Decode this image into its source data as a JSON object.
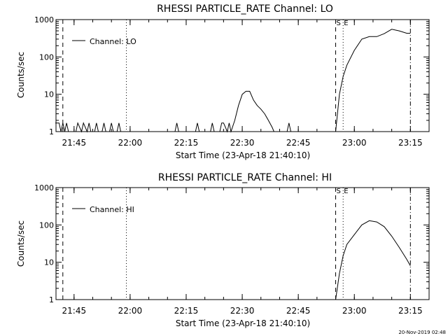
{
  "footer_timestamp": "20-Nov-2019 02:48",
  "chart_data": [
    {
      "type": "line",
      "title": "RHESSI PARTICLE_RATE Channel: LO",
      "xlabel": "Start Time (23-Apr-18 21:40:10)",
      "ylabel": "Counts/sec",
      "yscale": "log",
      "ylim": [
        1,
        1000
      ],
      "y_ticks": [
        "1",
        "10",
        "100",
        "1000"
      ],
      "x_ticks": [
        "21:45",
        "22:00",
        "22:15",
        "22:30",
        "22:45",
        "23:00",
        "23:15"
      ],
      "legend": {
        "entries": [
          "Channel: LO"
        ],
        "placement": "top-left"
      },
      "markers": [
        {
          "label": "",
          "time": "21:42",
          "style": "dashed"
        },
        {
          "label": "",
          "time": "21:59",
          "style": "dotted"
        },
        {
          "label": "S",
          "time": "22:55",
          "style": "dashed"
        },
        {
          "label": "E",
          "time": "22:57",
          "style": "dotted"
        },
        {
          "label": "",
          "time": "23:15",
          "style": "dash-dot"
        }
      ],
      "series": [
        {
          "name": "Channel: LO",
          "x": [
            "21:40",
            "21:41",
            "21:41.5",
            "21:42",
            "21:42.5",
            "21:43",
            "21:43.5",
            "21:44",
            "21:45.5",
            "21:46",
            "21:47",
            "21:47.5",
            "21:48.5",
            "21:49",
            "21:49.5",
            "21:50.5",
            "21:51",
            "21:51.5",
            "21:52.5",
            "21:53",
            "21:53.5",
            "21:54.5",
            "21:55",
            "21:55.5",
            "21:56.5",
            "21:57",
            "21:57.5",
            "22:12",
            "22:12.5",
            "22:13",
            "22:17.5",
            "22:18",
            "22:18.5",
            "22:21.5",
            "22:22",
            "22:22.5",
            "22:24",
            "22:24.5",
            "22:25",
            "22:26",
            "22:26.5",
            "22:27",
            "22:28",
            "22:29",
            "22:30",
            "22:31",
            "22:32",
            "22:33",
            "22:34",
            "22:35",
            "22:36",
            "22:37",
            "22:38",
            "22:38.5",
            "22:39",
            "22:42",
            "22:42.5",
            "22:43",
            "22:55",
            "22:56",
            "22:57",
            "22:58",
            "23:00",
            "23:02",
            "23:04",
            "23:06",
            "23:08",
            "23:10",
            "23:12",
            "23:14",
            "23:15"
          ],
          "y": [
            1.7,
            1.7,
            1.0,
            1.7,
            1.0,
            1.7,
            1.0,
            1.0,
            1.0,
            1.7,
            1.0,
            1.7,
            1.0,
            1.7,
            1.0,
            1.0,
            1.7,
            1.0,
            1.0,
            1.7,
            1.0,
            1.0,
            1.7,
            1.0,
            1.0,
            1.7,
            1.0,
            1.0,
            1.7,
            1.0,
            1.0,
            1.7,
            1.0,
            1.0,
            1.7,
            1.0,
            1.0,
            1.7,
            1.7,
            1.0,
            1.7,
            1.0,
            2.0,
            5.0,
            10.0,
            12.0,
            12.0,
            7.0,
            5.0,
            4.0,
            3.0,
            2.0,
            1.3,
            1.0,
            1.0,
            1.0,
            1.7,
            1.0,
            1.0,
            10.0,
            30.0,
            60.0,
            150.0,
            300.0,
            350.0,
            350.0,
            420.0,
            550.0,
            500.0,
            430.0,
            430.0
          ]
        }
      ]
    },
    {
      "type": "line",
      "title": "RHESSI PARTICLE_RATE Channel: HI",
      "xlabel": "Start Time (23-Apr-18 21:40:10)",
      "ylabel": "Counts/sec",
      "yscale": "log",
      "ylim": [
        1,
        1000
      ],
      "y_ticks": [
        "1",
        "10",
        "100",
        "1000"
      ],
      "x_ticks": [
        "21:45",
        "22:00",
        "22:15",
        "22:30",
        "22:45",
        "23:00",
        "23:15"
      ],
      "legend": {
        "entries": [
          "Channel: HI"
        ],
        "placement": "top-left"
      },
      "markers": [
        {
          "label": "",
          "time": "21:42",
          "style": "dashed"
        },
        {
          "label": "",
          "time": "21:59",
          "style": "dotted"
        },
        {
          "label": "S",
          "time": "22:55",
          "style": "dashed"
        },
        {
          "label": "E",
          "time": "22:57",
          "style": "dotted"
        },
        {
          "label": "",
          "time": "23:15",
          "style": "dash-dot"
        }
      ],
      "series": [
        {
          "name": "Channel: HI",
          "x": [
            "22:55",
            "22:56",
            "22:57",
            "22:58",
            "23:00",
            "23:02",
            "23:04",
            "23:06",
            "23:08",
            "23:10",
            "23:12",
            "23:14",
            "23:15"
          ],
          "y": [
            1.0,
            5.0,
            15.0,
            30.0,
            55.0,
            100.0,
            130.0,
            120.0,
            90.0,
            50.0,
            25.0,
            12.0,
            8.0
          ]
        }
      ]
    }
  ]
}
